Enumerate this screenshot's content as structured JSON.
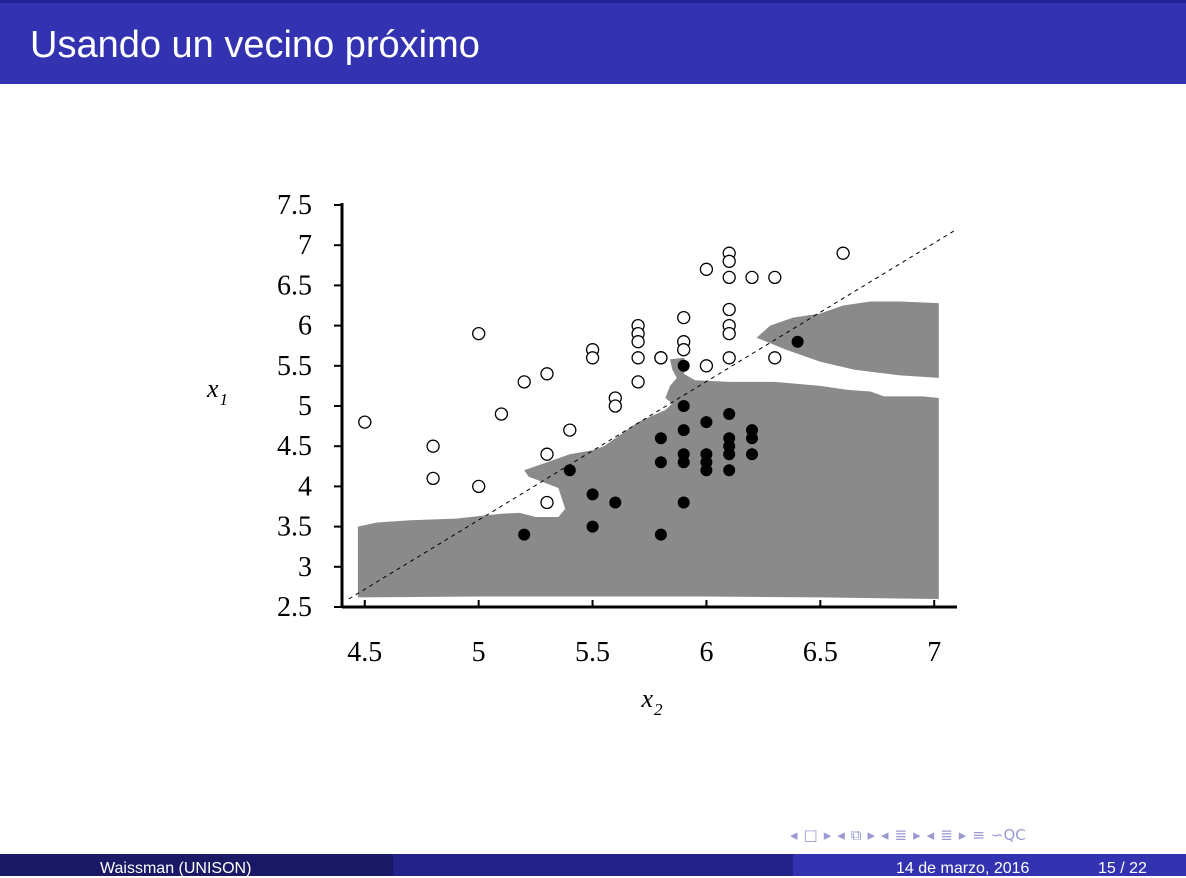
{
  "slide": {
    "title": "Usando un vecino próximo"
  },
  "footer": {
    "author": "Waissman (UNISON)",
    "date": "14 de marzo, 2016",
    "page": "15 / 22"
  },
  "navigation": {
    "icons": [
      "nav-prev-frame-icon",
      "nav-frame-icon",
      "nav-next-frame-icon",
      "nav-prev-slide-icon",
      "nav-slide-icon",
      "nav-next-slide-icon",
      "nav-prev-section-icon",
      "nav-section-icon",
      "nav-next-section-icon",
      "nav-prev-subsection-icon",
      "nav-subsection-icon",
      "nav-next-subsection-icon",
      "nav-align-icon",
      "nav-search-icon"
    ],
    "glyphs": [
      "◂",
      "□",
      "▸",
      "◂",
      "⧉",
      "▸",
      "◂",
      "≣",
      "▸",
      "◂",
      "≣",
      "▸",
      "≡",
      "∽QC"
    ]
  },
  "colors": {
    "title_bar": "#3333b2",
    "footer_left": "#191966",
    "footer_mid": "#22228a",
    "footer_right": "#3333b2",
    "region_fill": "#8a8a8a"
  },
  "chart_data": {
    "type": "scatter",
    "xlabel": "x",
    "xlabel_sub": "2",
    "ylabel": "x",
    "ylabel_sub": "1",
    "xlim": [
      4.4,
      7.1
    ],
    "ylim": [
      2.5,
      7.5
    ],
    "xticks": [
      4.5,
      5,
      5.5,
      6,
      6.5,
      7
    ],
    "xtick_labels": [
      "4.5",
      "5",
      "5.5",
      "6",
      "6.5",
      "7"
    ],
    "yticks": [
      2.5,
      3,
      3.5,
      4,
      4.5,
      5,
      5.5,
      6,
      6.5,
      7,
      7.5
    ],
    "ytick_labels": [
      "2.5",
      "3",
      "3.5",
      "4",
      "4.5",
      "5",
      "5.5",
      "6",
      "6.5",
      "7",
      "7.5"
    ],
    "grid": false,
    "legend": "none",
    "diagonal_line": {
      "style": "dashed",
      "from": [
        4.43,
        2.6
      ],
      "to": [
        7.1,
        7.2
      ]
    },
    "shaded_region": [
      [
        [
          4.47,
          3.5
        ],
        [
          4.55,
          3.55
        ],
        [
          4.7,
          3.58
        ],
        [
          4.9,
          3.6
        ],
        [
          5.0,
          3.63
        ],
        [
          5.1,
          3.66
        ],
        [
          5.18,
          3.67
        ],
        [
          5.25,
          3.62
        ],
        [
          5.35,
          3.62
        ],
        [
          5.38,
          3.72
        ],
        [
          5.35,
          3.98
        ],
        [
          5.22,
          4.12
        ],
        [
          5.2,
          4.2
        ],
        [
          5.3,
          4.3
        ],
        [
          5.4,
          4.4
        ],
        [
          5.5,
          4.45
        ],
        [
          5.55,
          4.5
        ],
        [
          5.6,
          4.6
        ],
        [
          5.7,
          4.8
        ],
        [
          5.78,
          4.9
        ],
        [
          5.82,
          4.95
        ],
        [
          5.85,
          5.03
        ],
        [
          5.82,
          5.1
        ],
        [
          5.84,
          5.25
        ],
        [
          5.87,
          5.35
        ],
        [
          5.85,
          5.45
        ],
        [
          5.84,
          5.58
        ],
        [
          5.9,
          5.6
        ],
        [
          5.92,
          5.5
        ],
        [
          5.9,
          5.4
        ],
        [
          5.95,
          5.32
        ],
        [
          6.1,
          5.3
        ],
        [
          6.3,
          5.3
        ],
        [
          6.5,
          5.25
        ],
        [
          6.62,
          5.2
        ],
        [
          6.72,
          5.18
        ],
        [
          6.78,
          5.12
        ],
        [
          6.85,
          5.12
        ],
        [
          6.95,
          5.12
        ],
        [
          7.02,
          5.1
        ],
        [
          7.02,
          2.6
        ],
        [
          6.5,
          2.62
        ],
        [
          6.0,
          2.63
        ],
        [
          5.5,
          2.63
        ],
        [
          5.0,
          2.63
        ],
        [
          4.47,
          2.62
        ]
      ],
      [
        [
          6.22,
          5.85
        ],
        [
          6.28,
          6.0
        ],
        [
          6.38,
          6.1
        ],
        [
          6.5,
          6.15
        ],
        [
          6.6,
          6.25
        ],
        [
          6.72,
          6.3
        ],
        [
          6.85,
          6.3
        ],
        [
          7.02,
          6.28
        ],
        [
          7.02,
          5.35
        ],
        [
          6.85,
          5.38
        ],
        [
          6.65,
          5.45
        ],
        [
          6.5,
          5.55
        ],
        [
          6.35,
          5.7
        ]
      ]
    ],
    "series": [
      {
        "marker": "open-circle",
        "points": [
          [
            4.5,
            4.8
          ],
          [
            4.8,
            4.5
          ],
          [
            4.8,
            4.1
          ],
          [
            5.0,
            5.9
          ],
          [
            5.0,
            4.0
          ],
          [
            5.1,
            4.9
          ],
          [
            5.2,
            5.3
          ],
          [
            5.3,
            5.4
          ],
          [
            5.3,
            4.4
          ],
          [
            5.3,
            3.8
          ],
          [
            5.4,
            4.7
          ],
          [
            5.5,
            5.7
          ],
          [
            5.5,
            5.6
          ],
          [
            5.6,
            5.1
          ],
          [
            5.6,
            5.0
          ],
          [
            5.7,
            6.0
          ],
          [
            5.7,
            5.9
          ],
          [
            5.7,
            5.8
          ],
          [
            5.7,
            5.6
          ],
          [
            5.7,
            5.3
          ],
          [
            5.8,
            5.6
          ],
          [
            5.8,
            5.6
          ],
          [
            5.9,
            6.1
          ],
          [
            5.9,
            5.8
          ],
          [
            5.9,
            5.7
          ],
          [
            6.0,
            6.7
          ],
          [
            6.0,
            5.5
          ],
          [
            6.1,
            6.9
          ],
          [
            6.1,
            6.8
          ],
          [
            6.1,
            6.6
          ],
          [
            6.1,
            6.2
          ],
          [
            6.1,
            6.0
          ],
          [
            6.1,
            5.9
          ],
          [
            6.1,
            5.6
          ],
          [
            6.2,
            6.6
          ],
          [
            6.3,
            6.6
          ],
          [
            6.3,
            5.6
          ],
          [
            6.6,
            6.9
          ]
        ]
      },
      {
        "marker": "filled-circle",
        "points": [
          [
            5.2,
            3.4
          ],
          [
            5.4,
            4.2
          ],
          [
            5.5,
            3.9
          ],
          [
            5.5,
            3.5
          ],
          [
            5.6,
            3.8
          ],
          [
            5.8,
            4.6
          ],
          [
            5.8,
            4.3
          ],
          [
            5.8,
            3.4
          ],
          [
            5.9,
            5.5
          ],
          [
            5.9,
            5.0
          ],
          [
            5.9,
            4.7
          ],
          [
            5.9,
            4.4
          ],
          [
            5.9,
            4.3
          ],
          [
            5.9,
            3.8
          ],
          [
            6.0,
            4.8
          ],
          [
            6.0,
            4.4
          ],
          [
            6.0,
            4.3
          ],
          [
            6.0,
            4.2
          ],
          [
            6.1,
            4.9
          ],
          [
            6.1,
            4.6
          ],
          [
            6.1,
            4.5
          ],
          [
            6.1,
            4.4
          ],
          [
            6.1,
            4.2
          ],
          [
            6.2,
            4.7
          ],
          [
            6.2,
            4.6
          ],
          [
            6.2,
            4.4
          ],
          [
            6.4,
            5.8
          ]
        ]
      }
    ]
  }
}
